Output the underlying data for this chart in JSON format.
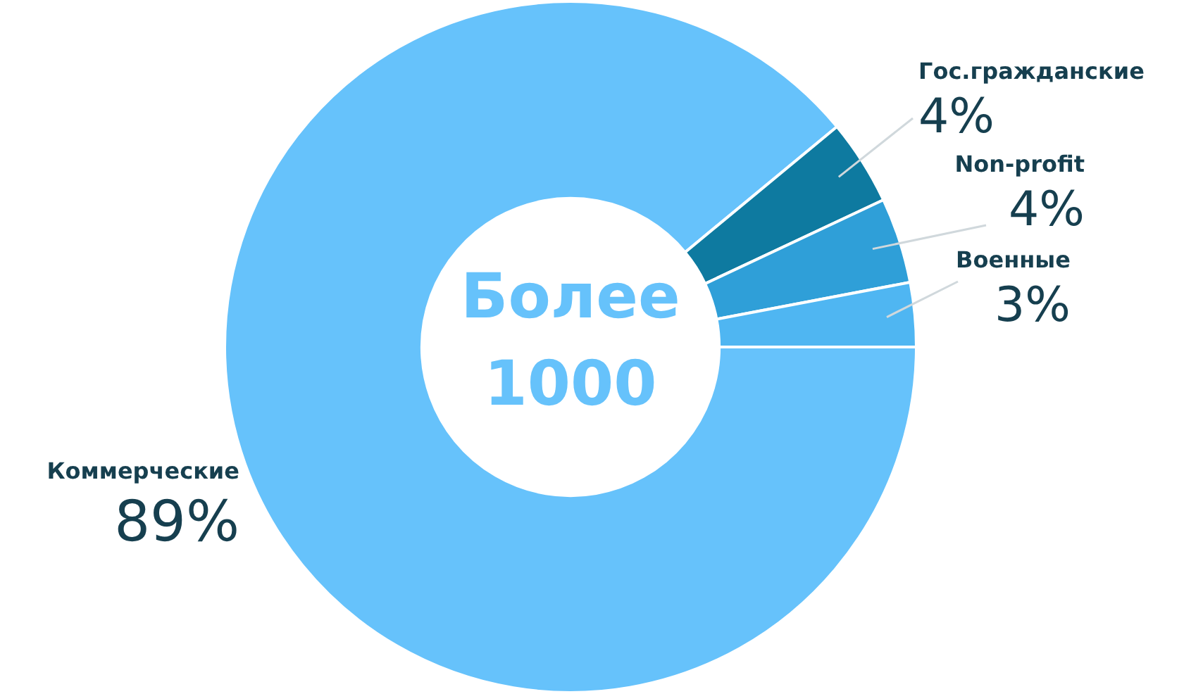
{
  "chart_data": {
    "type": "donut",
    "categories": [
      "Коммерческие",
      "Гос.гражданские",
      "Non-profit",
      "Военные"
    ],
    "values": [
      89,
      4,
      4,
      3
    ],
    "value_labels": [
      "89%",
      "4%",
      "4%",
      "3%"
    ],
    "colors": [
      "#66c2fb",
      "#0e7aa0",
      "#2f9fd8",
      "#4fb6f2"
    ],
    "annotations": [
      "Более",
      "1000"
    ],
    "legend": false
  }
}
